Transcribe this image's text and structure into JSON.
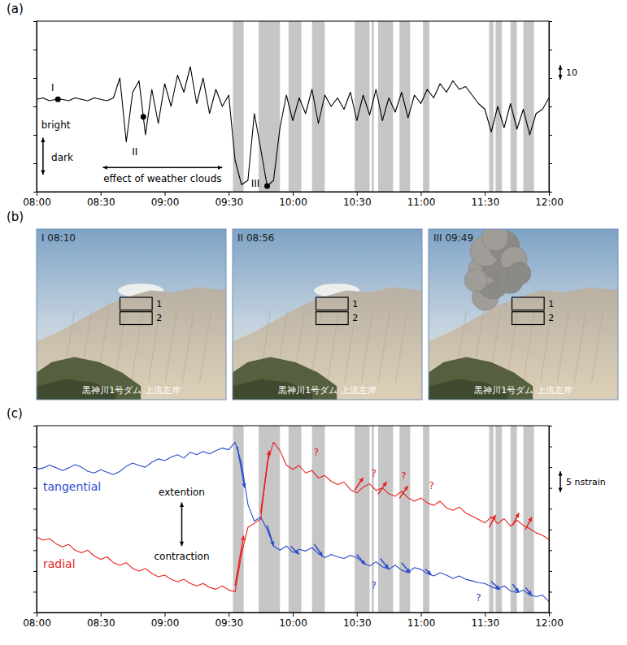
{
  "chart_data": [
    {
      "type": "line",
      "title": "(a)",
      "x": [
        480,
        483,
        486,
        489,
        492,
        495,
        498,
        501,
        504,
        507,
        510,
        513,
        516,
        519,
        522,
        525,
        528,
        531,
        534,
        537,
        540,
        543,
        546,
        549,
        552,
        555,
        558,
        561,
        564,
        567,
        570,
        573,
        576,
        579,
        582,
        585,
        588,
        591,
        594,
        597,
        600,
        603,
        606,
        609,
        612,
        615,
        618,
        621,
        624,
        627,
        630,
        633,
        636,
        639,
        642,
        645,
        648,
        651,
        654,
        657,
        660,
        663,
        666,
        669,
        672,
        675,
        678,
        681,
        684,
        687,
        690,
        693,
        696,
        699,
        702,
        705,
        708,
        711,
        714,
        717,
        720
      ],
      "values": [
        65,
        66,
        64,
        65,
        65,
        64,
        66,
        65,
        64,
        66,
        65,
        64,
        66,
        80,
        35,
        70,
        78,
        40,
        72,
        48,
        76,
        60,
        82,
        70,
        88,
        62,
        80,
        55,
        72,
        60,
        68,
        22,
        5,
        8,
        55,
        30,
        4,
        8,
        45,
        68,
        50,
        66,
        55,
        72,
        48,
        68,
        60,
        66,
        58,
        70,
        50,
        68,
        54,
        72,
        50,
        66,
        56,
        70,
        52,
        68,
        62,
        72,
        66,
        76,
        70,
        78,
        72,
        74,
        68,
        62,
        58,
        42,
        60,
        45,
        62,
        44,
        58,
        40,
        55,
        58,
        66
      ],
      "color": "#000000",
      "xlim": [
        480,
        720
      ],
      "xticks": [
        {
          "value": 480,
          "label": "08:00"
        },
        {
          "value": 510,
          "label": "08:30"
        },
        {
          "value": 540,
          "label": "09:00"
        },
        {
          "value": 570,
          "label": "09:30"
        },
        {
          "value": 600,
          "label": "10:00"
        },
        {
          "value": 630,
          "label": "10:30"
        },
        {
          "value": 660,
          "label": "11:00"
        },
        {
          "value": 690,
          "label": "11:30"
        },
        {
          "value": 720,
          "label": "12:00"
        }
      ],
      "ylim": [
        0,
        120
      ],
      "yticks": [
        0,
        20,
        40,
        60,
        80,
        100,
        120
      ],
      "tick_labels": "x",
      "shaded_intervals": [
        [
          572,
          577
        ],
        [
          584,
          594
        ],
        [
          598,
          604
        ],
        [
          609,
          615
        ],
        [
          629,
          636
        ],
        [
          637,
          638
        ],
        [
          640,
          647
        ],
        [
          650,
          655
        ],
        [
          661,
          664
        ],
        [
          692,
          694
        ],
        [
          695,
          698
        ],
        [
          702,
          705
        ],
        [
          708,
          713
        ]
      ],
      "scale_bar": 10,
      "points": [
        {
          "x": 490,
          "y": 65
        },
        {
          "x": 530,
          "y": 52.7
        },
        {
          "x": 588,
          "y": 4
        }
      ],
      "annotations": [
        {
          "text": "I",
          "x": 487.5,
          "y": 73
        },
        {
          "text": "II",
          "x": 526,
          "y": 28
        },
        {
          "text": "III",
          "x": 582.5,
          "y": 6
        },
        {
          "text": "bright",
          "x": 489,
          "y": 47
        },
        {
          "text": "dark",
          "x": 492,
          "y": 24
        },
        {
          "text": "effect of weather clouds",
          "x": 539,
          "y": 9
        }
      ],
      "arrows": [
        {
          "x": [
            483,
            483
          ],
          "y": [
            38,
            12
          ],
          "marker": "both"
        },
        {
          "x": [
            511,
            567
          ],
          "y": [
            17,
            17
          ],
          "marker": "both"
        }
      ]
    },
    {
      "type": "line",
      "title": "(c)",
      "x": [
        480,
        483,
        486,
        489,
        492,
        495,
        498,
        501,
        504,
        507,
        510,
        513,
        516,
        519,
        522,
        525,
        528,
        531,
        534,
        537,
        540,
        543,
        546,
        549,
        552,
        555,
        558,
        561,
        564,
        567,
        570,
        573,
        576,
        579,
        582,
        585,
        588,
        591,
        594,
        597,
        600,
        603,
        606,
        609,
        612,
        615,
        618,
        621,
        624,
        627,
        630,
        633,
        636,
        639,
        642,
        645,
        648,
        651,
        654,
        657,
        660,
        663,
        666,
        669,
        672,
        675,
        678,
        681,
        684,
        687,
        690,
        693,
        696,
        699,
        702,
        705,
        708,
        711,
        714,
        717,
        720
      ],
      "series": [
        {
          "name": "tangential",
          "color": "#2b4bcc",
          "values": [
            34.5,
            34.8,
            35.5,
            34.9,
            34.2,
            34.8,
            35.6,
            35.0,
            34.0,
            33.6,
            34.4,
            33.8,
            33.2,
            34.0,
            35.2,
            36.0,
            35.4,
            35.0,
            36.2,
            37.0,
            36.6,
            37.4,
            38.0,
            37.2,
            38.6,
            38.0,
            38.8,
            38.2,
            39.0,
            39.6,
            39.2,
            41.0,
            36.0,
            26.0,
            22.0,
            23.0,
            20.0,
            16.0,
            15.0,
            16.0,
            14.5,
            15.2,
            14.8,
            15.6,
            14.2,
            13.2,
            14.0,
            13.4,
            13.0,
            13.8,
            13.2,
            12.0,
            11.2,
            12.2,
            11.0,
            10.4,
            11.4,
            10.2,
            9.6,
            10.8,
            10.4,
            9.4,
            8.8,
            9.6,
            9.0,
            8.2,
            8.8,
            8.0,
            7.6,
            7.2,
            7.0,
            6.2,
            5.6,
            6.4,
            5.2,
            4.8,
            5.4,
            4.2,
            3.8,
            4.2,
            2.6
          ]
        },
        {
          "name": "radial",
          "color": "#e8201e",
          "values": [
            18.2,
            17.4,
            17.8,
            16.6,
            15.8,
            16.4,
            15.0,
            14.4,
            15.0,
            13.6,
            12.8,
            13.4,
            12.0,
            11.4,
            12.0,
            10.6,
            10.0,
            10.6,
            9.4,
            8.6,
            9.0,
            8.0,
            7.4,
            8.0,
            7.0,
            6.4,
            7.0,
            6.0,
            5.6,
            6.4,
            5.4,
            5.0,
            14.0,
            20.5,
            21.5,
            22.5,
            36.0,
            41.0,
            39.0,
            35.5,
            34.5,
            35.4,
            33.6,
            34.2,
            32.4,
            33.0,
            31.6,
            30.8,
            31.4,
            29.6,
            28.8,
            30.2,
            31.0,
            29.4,
            30.0,
            28.6,
            28.0,
            29.2,
            27.6,
            26.8,
            27.6,
            26.4,
            25.8,
            26.8,
            25.2,
            24.6,
            25.4,
            24.0,
            23.2,
            22.4,
            21.6,
            23.0,
            21.4,
            22.6,
            20.8,
            22.2,
            21.0,
            20.2,
            19.2,
            18.6,
            17.6
          ]
        }
      ],
      "xlim": [
        480,
        720
      ],
      "xticks": [
        {
          "value": 480,
          "label": "08:00"
        },
        {
          "value": 510,
          "label": "08:30"
        },
        {
          "value": 540,
          "label": "09:00"
        },
        {
          "value": 570,
          "label": "09:30"
        },
        {
          "value": 600,
          "label": "10:00"
        },
        {
          "value": 630,
          "label": "10:30"
        },
        {
          "value": 660,
          "label": "11:00"
        },
        {
          "value": 690,
          "label": "11:30"
        },
        {
          "value": 720,
          "label": "12:00"
        }
      ],
      "ylim": [
        0,
        45
      ],
      "yticks": [
        0,
        5,
        10,
        15,
        20,
        25,
        30,
        35,
        40,
        45
      ],
      "tick_labels": "x",
      "shaded_intervals": [
        [
          572,
          577
        ],
        [
          584,
          594
        ],
        [
          598,
          604
        ],
        [
          609,
          615
        ],
        [
          629,
          636
        ],
        [
          637,
          638
        ],
        [
          640,
          647
        ],
        [
          650,
          655
        ],
        [
          661,
          664
        ],
        [
          692,
          694
        ],
        [
          695,
          698
        ],
        [
          702,
          705
        ],
        [
          708,
          713
        ]
      ],
      "scale_bar": {
        "value": 5,
        "label": "5 nstrain"
      },
      "annotations": [
        {
          "text": "extention",
          "x": 548,
          "y": 29
        },
        {
          "text": "contraction",
          "x": 548,
          "y": 13.5
        },
        {
          "text": "?",
          "x": 611,
          "y": 38.5,
          "color": "#e8201e"
        },
        {
          "text": "?",
          "x": 638,
          "y": 33.5,
          "color": "#e8201e"
        },
        {
          "text": "?",
          "x": 652,
          "y": 33,
          "color": "#e8201e"
        },
        {
          "text": "?",
          "x": 665,
          "y": 30.5,
          "color": "#e8201e"
        },
        {
          "text": "?",
          "x": 638,
          "y": 6.5,
          "color": "#2b4bcc"
        },
        {
          "text": "?",
          "x": 687,
          "y": 3.5,
          "color": "#2b4bcc"
        }
      ],
      "arrows": [
        {
          "x": [
            548,
            548
          ],
          "y": [
            26.5,
            16
          ],
          "marker": "both"
        },
        {
          "x": [
            573,
            577
          ],
          "y": [
            6.5,
            18.5
          ],
          "marker": "end",
          "color": "#e8201e"
        },
        {
          "x": [
            585,
            589
          ],
          "y": [
            24,
            39
          ],
          "marker": "end",
          "color": "#e8201e"
        },
        {
          "x": [
            629,
            633
          ],
          "y": [
            29.5,
            32.5
          ],
          "marker": "end",
          "color": "#e8201e"
        },
        {
          "x": [
            640,
            644
          ],
          "y": [
            28.5,
            31.5
          ],
          "marker": "end",
          "color": "#e8201e"
        },
        {
          "x": [
            650,
            654
          ],
          "y": [
            27.5,
            30.5
          ],
          "marker": "end",
          "color": "#e8201e"
        },
        {
          "x": [
            692,
            695
          ],
          "y": [
            20.5,
            23.5
          ],
          "marker": "end",
          "color": "#e8201e"
        },
        {
          "x": [
            703,
            706
          ],
          "y": [
            21,
            24
          ],
          "marker": "end",
          "color": "#e8201e"
        },
        {
          "x": [
            709,
            712
          ],
          "y": [
            20,
            23
          ],
          "marker": "end",
          "color": "#e8201e"
        },
        {
          "x": [
            574,
            577.5
          ],
          "y": [
            40,
            30
          ],
          "marker": "end",
          "color": "#2b4bcc"
        },
        {
          "x": [
            588,
            591
          ],
          "y": [
            21,
            16
          ],
          "marker": "end",
          "color": "#2b4bcc"
        },
        {
          "x": [
            599,
            603
          ],
          "y": [
            16,
            14
          ],
          "marker": "end",
          "color": "#2b4bcc"
        },
        {
          "x": [
            610,
            614
          ],
          "y": [
            16.5,
            13.5
          ],
          "marker": "end",
          "color": "#2b4bcc"
        },
        {
          "x": [
            630,
            634
          ],
          "y": [
            14,
            11.5
          ],
          "marker": "end",
          "color": "#2b4bcc"
        },
        {
          "x": [
            641,
            645
          ],
          "y": [
            13,
            10.5
          ],
          "marker": "end",
          "color": "#2b4bcc"
        },
        {
          "x": [
            651,
            655
          ],
          "y": [
            12,
            9.5
          ],
          "marker": "end",
          "color": "#2b4bcc"
        },
        {
          "x": [
            662,
            665
          ],
          "y": [
            10.5,
            9
          ],
          "marker": "end",
          "color": "#2b4bcc"
        },
        {
          "x": [
            693,
            697
          ],
          "y": [
            7.5,
            5.5
          ],
          "marker": "end",
          "color": "#2b4bcc"
        },
        {
          "x": [
            703,
            706
          ],
          "y": [
            6.8,
            4.8
          ],
          "marker": "end",
          "color": "#2b4bcc"
        },
        {
          "x": [
            709,
            712
          ],
          "y": [
            6,
            4.2
          ],
          "marker": "end",
          "color": "#2b4bcc"
        }
      ]
    }
  ],
  "photos": {
    "title": "(b)",
    "items": [
      {
        "title": "I 08:10",
        "caption": "黒神川1号ダム 上流左岸",
        "boxes": [
          "1",
          "2"
        ],
        "plume": false
      },
      {
        "title": "II 08:56",
        "caption": "黒神川1号ダム 上流左岸",
        "boxes": [
          "1",
          "2"
        ],
        "plume": false
      },
      {
        "title": "III 09:49",
        "caption": "黒神川1号ダム 上流左岸",
        "boxes": [
          "1",
          "2"
        ],
        "plume": true
      }
    ]
  }
}
